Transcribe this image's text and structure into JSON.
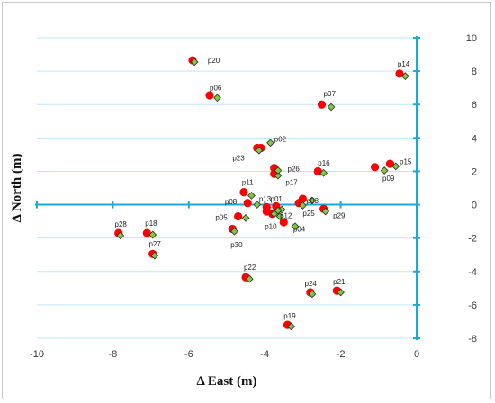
{
  "chart_data": {
    "type": "scatter",
    "xlabel": "Δ East (m)",
    "ylabel": "Δ North (m)",
    "xlim": [
      -10,
      0
    ],
    "ylim": [
      -8,
      10
    ],
    "xticks": [
      -10,
      -8,
      -6,
      -4,
      -2,
      0
    ],
    "yticks": [
      -8,
      -6,
      -4,
      -2,
      0,
      2,
      4,
      6,
      8,
      10
    ],
    "grid": "horizontal",
    "axis_color": "#1aa8e0",
    "gridline_color": "#bfe6f6",
    "series": [
      {
        "marker": "circle",
        "color": "#ff0000",
        "points": [
          {
            "label": "p01",
            "x": -3.7,
            "y": -0.1
          },
          {
            "label": "p02",
            "x": -4.1,
            "y": 3.4
          },
          {
            "label": "p03",
            "x": -3.0,
            "y": 0.35
          },
          {
            "label": "p04",
            "x": -3.5,
            "y": -1.05
          },
          {
            "label": "p05",
            "x": -4.7,
            "y": -0.7
          },
          {
            "label": "p06",
            "x": -5.45,
            "y": 6.55
          },
          {
            "label": "p07",
            "x": -2.5,
            "y": 6.0
          },
          {
            "label": "p08",
            "x": -4.45,
            "y": 0.1
          },
          {
            "label": "p09",
            "x": -1.1,
            "y": 2.25
          },
          {
            "label": "p10",
            "x": -3.8,
            "y": -0.55
          },
          {
            "label": "p11",
            "x": -4.55,
            "y": 0.75
          },
          {
            "label": "p12",
            "x": -3.95,
            "y": -0.4
          },
          {
            "label": "p13",
            "x": -3.95,
            "y": -0.15
          },
          {
            "label": "p14",
            "x": -0.45,
            "y": 7.85
          },
          {
            "label": "p15",
            "x": -0.7,
            "y": 2.45
          },
          {
            "label": "p16",
            "x": -2.6,
            "y": 2.0
          },
          {
            "label": "p17",
            "x": -3.75,
            "y": 1.85
          },
          {
            "label": "p18",
            "x": -7.1,
            "y": -1.7
          },
          {
            "label": "p19",
            "x": -3.4,
            "y": -7.2
          },
          {
            "label": "p20",
            "x": -5.9,
            "y": 8.65
          },
          {
            "label": "p21",
            "x": -2.1,
            "y": -5.15
          },
          {
            "label": "p22",
            "x": -4.5,
            "y": -4.35
          },
          {
            "label": "p23",
            "x": -4.2,
            "y": 3.4
          },
          {
            "label": "p24",
            "x": -2.8,
            "y": -5.25
          },
          {
            "label": "p25",
            "x": -3.1,
            "y": 0.1
          },
          {
            "label": "p26",
            "x": -3.75,
            "y": 2.2
          },
          {
            "label": "p27",
            "x": -6.95,
            "y": -2.95
          },
          {
            "label": "p28",
            "x": -7.85,
            "y": -1.7
          },
          {
            "label": "p29",
            "x": -2.45,
            "y": -0.25
          },
          {
            "label": "p30",
            "x": -4.85,
            "y": -1.45
          }
        ]
      },
      {
        "marker": "diamond",
        "color": "#7ec843",
        "points": [
          {
            "label": "p01",
            "x": -3.55,
            "y": -0.3
          },
          {
            "label": "p02",
            "x": -3.85,
            "y": 3.7
          },
          {
            "label": "p03",
            "x": -2.75,
            "y": 0.25
          },
          {
            "label": "p04",
            "x": -3.2,
            "y": -1.3
          },
          {
            "label": "p05",
            "x": -4.5,
            "y": -0.8
          },
          {
            "label": "p06",
            "x": -5.25,
            "y": 6.4
          },
          {
            "label": "p07",
            "x": -2.25,
            "y": 5.85
          },
          {
            "label": "p08",
            "x": -4.2,
            "y": 0.0
          },
          {
            "label": "p09",
            "x": -0.85,
            "y": 2.05
          },
          {
            "label": "p10",
            "x": -3.6,
            "y": -0.7
          },
          {
            "label": "p11",
            "x": -4.35,
            "y": 0.55
          },
          {
            "label": "p12",
            "x": -3.75,
            "y": -0.55
          },
          {
            "label": "p13",
            "x": -3.65,
            "y": -0.35
          },
          {
            "label": "p14",
            "x": -0.3,
            "y": 7.7
          },
          {
            "label": "p15",
            "x": -0.55,
            "y": 2.3
          },
          {
            "label": "p16",
            "x": -2.45,
            "y": 1.9
          },
          {
            "label": "p17",
            "x": -3.65,
            "y": 1.75
          },
          {
            "label": "p18",
            "x": -6.95,
            "y": -1.8
          },
          {
            "label": "p19",
            "x": -3.3,
            "y": -7.3
          },
          {
            "label": "p20",
            "x": -5.85,
            "y": 8.55
          },
          {
            "label": "p21",
            "x": -2.0,
            "y": -5.25
          },
          {
            "label": "p22",
            "x": -4.4,
            "y": -4.45
          },
          {
            "label": "p23",
            "x": -4.15,
            "y": 3.25
          },
          {
            "label": "p24",
            "x": -2.75,
            "y": -5.35
          },
          {
            "label": "p25",
            "x": -3.0,
            "y": -0.05
          },
          {
            "label": "p26",
            "x": -3.65,
            "y": 2.05
          },
          {
            "label": "p27",
            "x": -6.9,
            "y": -3.05
          },
          {
            "label": "p28",
            "x": -7.8,
            "y": -1.85
          },
          {
            "label": "p29",
            "x": -2.4,
            "y": -0.4
          },
          {
            "label": "p30",
            "x": -4.8,
            "y": -1.6
          }
        ]
      }
    ],
    "labels": [
      {
        "text": "p01",
        "x": -3.85,
        "y": 0.35
      },
      {
        "text": "p02",
        "x": -3.75,
        "y": 3.95
      },
      {
        "text": "p03",
        "x": -2.9,
        "y": 0.25
      },
      {
        "text": "p04",
        "x": -3.25,
        "y": -1.45
      },
      {
        "text": "p05",
        "x": -5.3,
        "y": -0.75
      },
      {
        "text": "p06",
        "x": -5.45,
        "y": 7.0
      },
      {
        "text": "p07",
        "x": -2.45,
        "y": 6.65
      },
      {
        "text": "p08",
        "x": -5.05,
        "y": 0.2
      },
      {
        "text": "p09",
        "x": -0.9,
        "y": 1.6
      },
      {
        "text": "p10",
        "x": -4.0,
        "y": -1.3
      },
      {
        "text": "p11",
        "x": -4.6,
        "y": 1.35
      },
      {
        "text": "p12",
        "x": -3.6,
        "y": -0.65
      },
      {
        "text": "p13",
        "x": -4.15,
        "y": 0.35
      },
      {
        "text": "p14",
        "x": -0.5,
        "y": 8.45
      },
      {
        "text": "p15",
        "x": -0.45,
        "y": 2.6
      },
      {
        "text": "p16",
        "x": -2.6,
        "y": 2.5
      },
      {
        "text": "p17",
        "x": -3.45,
        "y": 1.35
      },
      {
        "text": "p18",
        "x": -7.15,
        "y": -1.1
      },
      {
        "text": "p19",
        "x": -3.5,
        "y": -6.65
      },
      {
        "text": "p20",
        "x": -5.5,
        "y": 8.65
      },
      {
        "text": "p21",
        "x": -2.2,
        "y": -4.6
      },
      {
        "text": "p22",
        "x": -4.55,
        "y": -3.75
      },
      {
        "text": "p23",
        "x": -4.85,
        "y": 2.8
      },
      {
        "text": "p24",
        "x": -2.95,
        "y": -4.7
      },
      {
        "text": "p25",
        "x": -3.0,
        "y": -0.5
      },
      {
        "text": "p26",
        "x": -3.4,
        "y": 2.15
      },
      {
        "text": "p27",
        "x": -7.05,
        "y": -2.35
      },
      {
        "text": "p28",
        "x": -7.95,
        "y": -1.15
      },
      {
        "text": "p29",
        "x": -2.2,
        "y": -0.65
      },
      {
        "text": "p30",
        "x": -4.9,
        "y": -2.4
      }
    ]
  }
}
